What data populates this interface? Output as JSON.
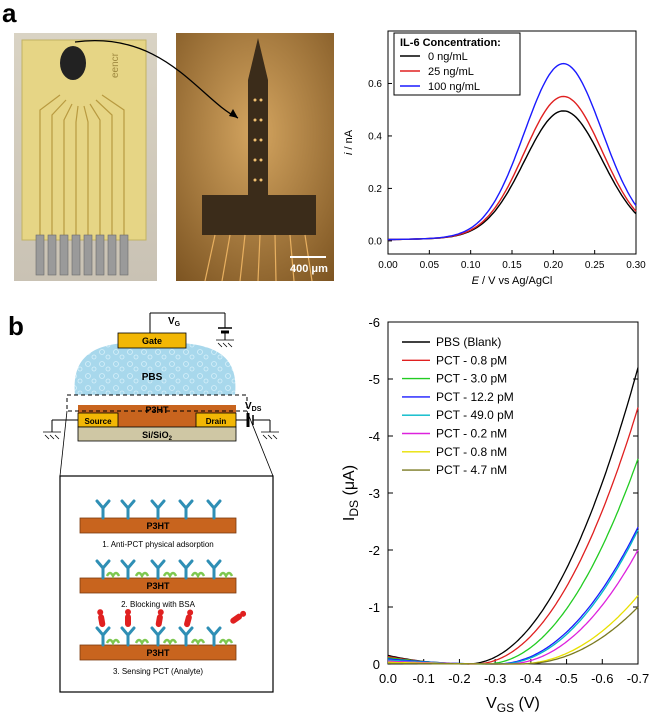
{
  "panel_a": {
    "label": "a"
  },
  "panel_b": {
    "label": "b"
  },
  "photo_chip": {
    "brand_text": "eencr"
  },
  "photo_microscope": {
    "scalebar_label": "400 μm"
  },
  "schematic": {
    "gate_label": "Gate",
    "vg_label": "V",
    "vg_sub": "G",
    "electrolyte_label": "PBS",
    "vds_label": "V",
    "vds_sub": "DS",
    "channel_label": "P3HT",
    "source_label": "Source",
    "drain_label": "Drain",
    "substrate_label": "Si/SiO",
    "substrate_sub": "2"
  },
  "steps": [
    {
      "film_label": "P3HT",
      "caption": "1. Anti-PCT physical adsorption"
    },
    {
      "film_label": "P3HT",
      "caption": "2. Blocking with BSA"
    },
    {
      "film_label": "P3HT",
      "caption": "3. Sensing PCT (Analyte)"
    }
  ],
  "colors": {
    "gold": "#f2b705",
    "p3ht": "#c8641e",
    "electrolyte": "#a8d8ec",
    "substrate": "#cfc7a4",
    "antibody": "#2f8fb5",
    "bsa": "#7ec850",
    "analyte": "#e02020"
  },
  "chart_data": [
    {
      "type": "line",
      "title": "",
      "legend_title": "IL-6 Concentration:",
      "xlabel_italic": "E",
      "xlabel_rest": " / V vs Ag/AgCl",
      "ylabel_italic": "i",
      "ylabel_rest": " / nA",
      "xlim": [
        0.0,
        0.3
      ],
      "ylim": [
        -0.05,
        0.8
      ],
      "xticks": [
        "0.00",
        "0.05",
        "0.10",
        "0.15",
        "0.20",
        "0.25",
        "0.30"
      ],
      "yticks": [
        "0.0",
        "0.2",
        "0.4",
        "0.6"
      ],
      "legend_position": "top-left",
      "series": [
        {
          "name": "0 ng/mL",
          "color": "#000000",
          "peak": 0.5
        },
        {
          "name": "25 ng/mL",
          "color": "#e02020",
          "peak": 0.555
        },
        {
          "name": "100 ng/mL",
          "color": "#1a1aff",
          "peak": 0.68
        }
      ],
      "peak_position": 0.212
    },
    {
      "type": "line",
      "title": "",
      "xlabel": "V",
      "xlabel_sub": "GS",
      "xlabel_rest": " (V)",
      "ylabel": "I",
      "ylabel_sub": "DS",
      "ylabel_rest": " (μA)",
      "xlim": [
        0.0,
        -0.7
      ],
      "ylim": [
        0.0,
        -6.0
      ],
      "xticks": [
        "0.0",
        "-0.1",
        "-0.2",
        "-0.3",
        "-0.4",
        "-0.5",
        "-0.6",
        "-0.7"
      ],
      "yticks": [
        "0",
        "-1",
        "-2",
        "-3",
        "-4",
        "-5",
        "-6"
      ],
      "legend_position": "top-left",
      "series": [
        {
          "name": "PBS (Blank)",
          "color": "#000000",
          "end": -5.2,
          "onset": -0.22
        },
        {
          "name": "PCT - 0.8 pM",
          "color": "#e02020",
          "end": -4.5,
          "onset": -0.24
        },
        {
          "name": "PCT - 3.0 pM",
          "color": "#22cc22",
          "end": -3.6,
          "onset": -0.27
        },
        {
          "name": "PCT - 12.2 pM",
          "color": "#1a1aff",
          "end": -2.4,
          "onset": -0.3
        },
        {
          "name": "PCT - 49.0 pM",
          "color": "#00b8c8",
          "end": -2.35,
          "onset": -0.31
        },
        {
          "name": "PCT - 0.2 nM",
          "color": "#dd22dd",
          "end": -2.0,
          "onset": -0.33
        },
        {
          "name": "PCT - 0.8 nM",
          "color": "#e8e000",
          "end": -1.2,
          "onset": -0.36
        },
        {
          "name": "PCT - 4.7 nM",
          "color": "#7a7a22",
          "end": -1.0,
          "onset": -0.37
        }
      ]
    }
  ]
}
